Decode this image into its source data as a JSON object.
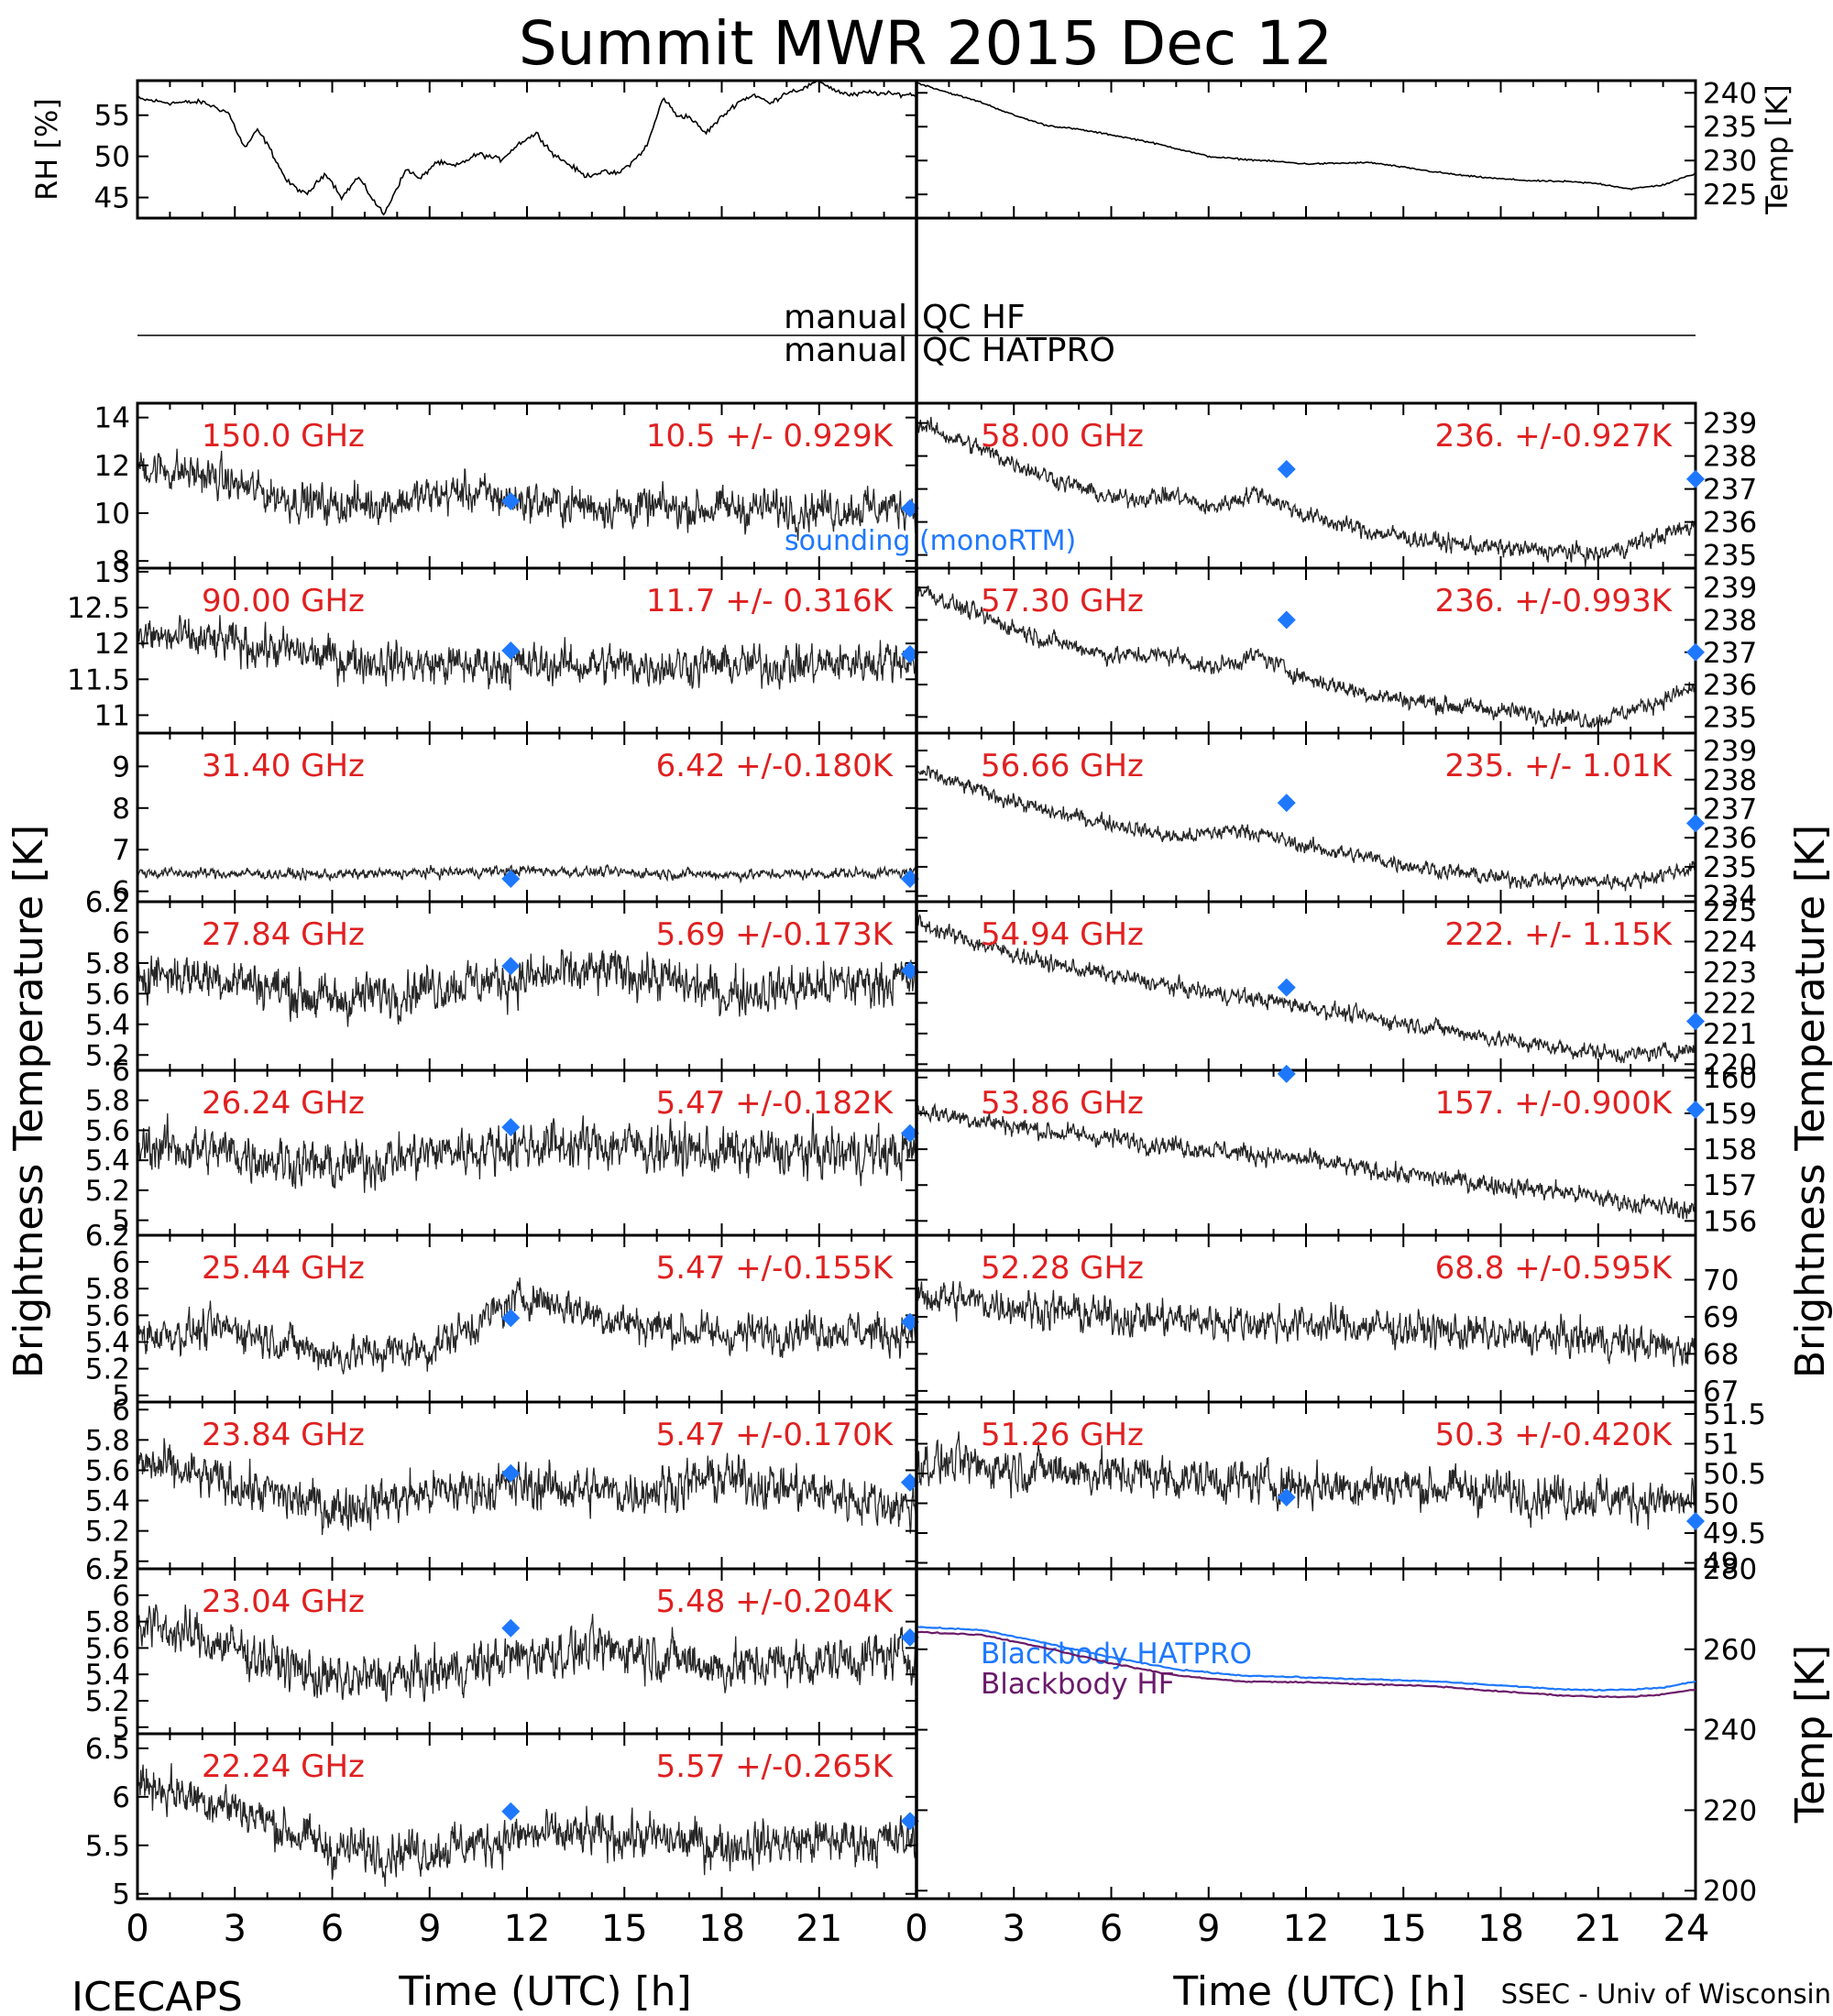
{
  "figure": {
    "title": "Summit MWR 2015 Dec 12",
    "footer_left": "ICECAPS",
    "footer_right": "SSEC - Univ of Wisconsin",
    "xlabel": "Time (UTC) [h]",
    "left_ylabel": "Brightness Temperature [K]",
    "right_ylabel": "Brightness Temperature [K]",
    "qc_left_label": "manual",
    "qc_hf_label": "QC HF",
    "qc_hatpro_label": "QC HATPRO",
    "sounding_label": "sounding (monoRTM)",
    "marker_color": "#1e78ff",
    "text_color": "#e02020"
  },
  "chart_data": [
    {
      "type": "line",
      "id": "rh",
      "ylabel": "RH [%]",
      "yticks": [
        45,
        50,
        55
      ],
      "ylim": [
        42.5,
        59.2
      ],
      "x": [
        0,
        1,
        2,
        2.8,
        3.3,
        3.7,
        4,
        4.6,
        5.2,
        5.8,
        6.3,
        6.8,
        7.3,
        7.6,
        7.9,
        8.3,
        8.7,
        9.2,
        9.8,
        10.5,
        11.2,
        11.8,
        12.3,
        12.8,
        13.3,
        13.8,
        14.3,
        14.8,
        15.3,
        15.7,
        16.2,
        16.6,
        17,
        17.5,
        18,
        18.5,
        19,
        19.5,
        20,
        20.5,
        21,
        21.5,
        22,
        22.5,
        23,
        23.8
      ],
      "values": [
        57,
        56.5,
        56.6,
        55.3,
        51,
        53.2,
        51.5,
        47,
        45.3,
        48,
        45,
        47.5,
        44.5,
        42.9,
        45.5,
        48.5,
        47.2,
        49.3,
        48.8,
        50.3,
        49.6,
        51.7,
        52.8,
        50.3,
        49,
        47.6,
        48.1,
        47.9,
        49.5,
        51.3,
        57.2,
        55,
        54.8,
        52.8,
        54.8,
        56.6,
        57.5,
        56.4,
        57.8,
        58.2,
        59.2,
        58,
        57.4,
        57.8,
        57.6,
        57.5
      ],
      "xlim": [
        0,
        24
      ]
    },
    {
      "type": "line",
      "id": "temp",
      "ylabel": "Temp [K]",
      "yticks": [
        225,
        230,
        235,
        240
      ],
      "ylim": [
        221.5,
        241.8
      ],
      "x": [
        0,
        1,
        2,
        3,
        4,
        5,
        6,
        7,
        8,
        9,
        10,
        11,
        12,
        13,
        14,
        15,
        16,
        17,
        18,
        19,
        20,
        21,
        22,
        23,
        24
      ],
      "values": [
        241.5,
        240,
        238.6,
        236.7,
        235.2,
        234.6,
        233.8,
        232.9,
        231.8,
        230.6,
        230.2,
        229.9,
        229.5,
        229.6,
        229.7,
        229.0,
        228.3,
        227.7,
        227.3,
        227.0,
        226.9,
        226.6,
        225.8,
        226.4,
        228.1
      ],
      "xlim": [
        0,
        24
      ]
    },
    {
      "type": "scatter",
      "side": "left",
      "label": "150.0 GHz",
      "stats": "10.5 +/- 0.929K",
      "yticks": [
        8,
        10,
        12,
        14
      ],
      "ylim": [
        7.7,
        14.6
      ],
      "xlim": [
        0,
        24
      ],
      "trend_x": [
        0,
        2,
        4,
        6,
        8,
        10,
        12,
        14,
        16,
        18,
        20,
        22,
        24
      ],
      "trend_y": [
        12,
        11.6,
        10.8,
        10.3,
        10.5,
        10.9,
        10.5,
        10.3,
        10.2,
        10.2,
        10.2,
        10.2,
        10.3
      ],
      "spread": 0.93,
      "sounding_x": [
        11.5,
        23.8
      ],
      "sounding_y": [
        10.5,
        10.2
      ],
      "sounding_label": "sounding (monoRTM)"
    },
    {
      "type": "scatter",
      "side": "left",
      "label": "90.00 GHz",
      "stats": "11.7 +/- 0.316K",
      "yticks": [
        11.0,
        11.5,
        12.0,
        12.5,
        13.0
      ],
      "ylim": [
        10.75,
        13.05
      ],
      "xlim": [
        0,
        24
      ],
      "trend_x": [
        0,
        3,
        6,
        9,
        12,
        15,
        18,
        21,
        24
      ],
      "trend_y": [
        12.1,
        12.0,
        11.8,
        11.7,
        11.7,
        11.7,
        11.7,
        11.7,
        11.8
      ],
      "spread": 0.32,
      "sounding_x": [
        11.5,
        23.8
      ],
      "sounding_y": [
        11.9,
        11.85
      ]
    },
    {
      "type": "scatter",
      "side": "left",
      "label": "31.40 GHz",
      "stats": "6.42 +/-0.180K",
      "yticks": [
        6,
        7,
        8,
        9
      ],
      "ylim": [
        5.75,
        9.8
      ],
      "xlim": [
        0,
        24
      ],
      "trend_x": [
        0,
        6,
        12,
        18,
        24
      ],
      "trend_y": [
        6.45,
        6.4,
        6.5,
        6.4,
        6.45
      ],
      "spread": 0.14,
      "sounding_x": [
        11.5,
        23.8
      ],
      "sounding_y": [
        6.3,
        6.3
      ]
    },
    {
      "type": "scatter",
      "side": "left",
      "label": "27.84 GHz",
      "stats": "5.69 +/-0.173K",
      "yticks": [
        5.2,
        5.4,
        5.6,
        5.8,
        6.0,
        6.2
      ],
      "ylim": [
        5.1,
        6.2
      ],
      "xlim": [
        0,
        24
      ],
      "trend_x": [
        0,
        3,
        6,
        9,
        12,
        15,
        18,
        21,
        24
      ],
      "trend_y": [
        5.75,
        5.7,
        5.55,
        5.65,
        5.7,
        5.75,
        5.6,
        5.65,
        5.7
      ],
      "spread": 0.17,
      "sounding_x": [
        11.5,
        23.8
      ],
      "sounding_y": [
        5.78,
        5.75
      ]
    },
    {
      "type": "scatter",
      "side": "left",
      "label": "26.24 GHz",
      "stats": "5.47 +/-0.182K",
      "yticks": [
        5.0,
        5.2,
        5.4,
        5.6,
        5.8,
        6.0
      ],
      "ylim": [
        4.9,
        6.0
      ],
      "xlim": [
        0,
        24
      ],
      "trend_x": [
        0,
        3,
        6,
        9,
        12,
        15,
        18,
        21,
        24
      ],
      "trend_y": [
        5.5,
        5.45,
        5.35,
        5.45,
        5.5,
        5.5,
        5.45,
        5.45,
        5.45
      ],
      "spread": 0.18,
      "sounding_x": [
        11.5,
        23.8
      ],
      "sounding_y": [
        5.62,
        5.58
      ]
    },
    {
      "type": "scatter",
      "side": "left",
      "label": "25.44 GHz",
      "stats": "5.47 +/-0.155K",
      "yticks": [
        5.0,
        5.2,
        5.4,
        5.6,
        5.8,
        6.0,
        6.2
      ],
      "ylim": [
        4.95,
        6.2
      ],
      "xlim": [
        0,
        24
      ],
      "trend_x": [
        0,
        3,
        6,
        9,
        12,
        15,
        18,
        21,
        24
      ],
      "trend_y": [
        5.45,
        5.5,
        5.3,
        5.35,
        5.75,
        5.55,
        5.45,
        5.5,
        5.45
      ],
      "spread": 0.16,
      "sounding_x": [
        11.5,
        23.8
      ],
      "sounding_y": [
        5.58,
        5.55
      ]
    },
    {
      "type": "scatter",
      "side": "left",
      "label": "23.84 GHz",
      "stats": "5.47 +/-0.170K",
      "yticks": [
        5.0,
        5.2,
        5.4,
        5.6,
        5.8,
        6.0
      ],
      "ylim": [
        4.95,
        6.05
      ],
      "xlim": [
        0,
        24
      ],
      "trend_x": [
        0,
        3,
        6,
        9,
        12,
        15,
        18,
        21,
        24
      ],
      "trend_y": [
        5.65,
        5.5,
        5.35,
        5.45,
        5.5,
        5.45,
        5.55,
        5.45,
        5.35
      ],
      "spread": 0.17,
      "sounding_x": [
        11.5,
        23.8
      ],
      "sounding_y": [
        5.58,
        5.52
      ]
    },
    {
      "type": "scatter",
      "side": "left",
      "label": "23.04 GHz",
      "stats": "5.48 +/-0.204K",
      "yticks": [
        5.0,
        5.2,
        5.4,
        5.6,
        5.8,
        6.0,
        6.2
      ],
      "ylim": [
        4.95,
        6.2
      ],
      "xlim": [
        0,
        24
      ],
      "trend_x": [
        0,
        3,
        6,
        9,
        12,
        15,
        18,
        21,
        24
      ],
      "trend_y": [
        5.8,
        5.6,
        5.35,
        5.4,
        5.55,
        5.6,
        5.45,
        5.5,
        5.55
      ],
      "spread": 0.2,
      "sounding_x": [
        11.5,
        23.8
      ],
      "sounding_y": [
        5.75,
        5.68
      ]
    },
    {
      "type": "scatter",
      "side": "left",
      "label": "22.24 GHz",
      "stats": "5.57 +/-0.265K",
      "yticks": [
        5.0,
        5.5,
        6.0,
        6.5
      ],
      "ylim": [
        4.95,
        6.65
      ],
      "xlim": [
        0,
        24
      ],
      "trend_x": [
        0,
        3,
        6,
        9,
        12,
        15,
        18,
        21,
        24
      ],
      "trend_y": [
        6.15,
        5.9,
        5.45,
        5.45,
        5.6,
        5.6,
        5.5,
        5.55,
        5.55
      ],
      "spread": 0.26,
      "sounding_x": [
        11.5,
        23.8
      ],
      "sounding_y": [
        5.85,
        5.75
      ]
    },
    {
      "type": "scatter",
      "side": "right",
      "label": "58.00 GHz",
      "stats": "236. +/-0.927K",
      "yticks": [
        235,
        236,
        237,
        238,
        239
      ],
      "ylim": [
        234.6,
        239.6
      ],
      "xlim": [
        0,
        24
      ],
      "trend_x": [
        0,
        2,
        4,
        6,
        8,
        9,
        10.5,
        12,
        14,
        16,
        18,
        20,
        21,
        22,
        24
      ],
      "trend_y": [
        239,
        238.2,
        237.4,
        236.7,
        236.8,
        236.4,
        236.9,
        236.2,
        235.7,
        235.4,
        235.2,
        235.1,
        235.0,
        235.3,
        235.9
      ],
      "spread": 0.3,
      "sounding_x": [
        11.4,
        24
      ],
      "sounding_y": [
        237.6,
        237.3
      ]
    },
    {
      "type": "scatter",
      "side": "right",
      "label": "57.30 GHz",
      "stats": "236. +/-0.993K",
      "yticks": [
        235,
        236,
        237,
        238,
        239
      ],
      "ylim": [
        234.5,
        239.6
      ],
      "xlim": [
        0,
        24
      ],
      "trend_x": [
        0,
        2,
        4,
        6,
        8,
        9,
        10.5,
        12,
        14,
        16,
        18,
        20,
        21,
        22,
        24
      ],
      "trend_y": [
        239,
        238.1,
        237.4,
        236.9,
        236.9,
        236.5,
        236.9,
        236.2,
        235.7,
        235.4,
        235.2,
        235.0,
        234.9,
        235.2,
        235.9
      ],
      "spread": 0.3,
      "sounding_x": [
        11.4,
        24
      ],
      "sounding_y": [
        238.0,
        237.0
      ]
    },
    {
      "type": "scatter",
      "side": "right",
      "label": "56.66 GHz",
      "stats": "235. +/- 1.01K",
      "yticks": [
        234,
        235,
        236,
        237,
        238,
        239
      ],
      "ylim": [
        233.8,
        239.6
      ],
      "xlim": [
        0,
        24
      ],
      "trend_x": [
        0,
        2,
        4,
        6,
        8,
        10,
        12,
        14,
        16,
        18,
        20,
        22,
        24
      ],
      "trend_y": [
        238.3,
        237.6,
        236.9,
        236.5,
        236.0,
        236.3,
        235.7,
        235.3,
        234.9,
        234.6,
        234.5,
        234.5,
        235.0
      ],
      "spread": 0.3,
      "sounding_x": [
        11.4,
        24
      ],
      "sounding_y": [
        237.2,
        236.5
      ]
    },
    {
      "type": "scatter",
      "side": "right",
      "label": "54.94 GHz",
      "stats": "222. +/- 1.15K",
      "yticks": [
        220,
        221,
        222,
        223,
        224,
        225
      ],
      "ylim": [
        219.8,
        225.3
      ],
      "xlim": [
        0,
        24
      ],
      "trend_x": [
        0,
        2,
        4,
        6,
        8,
        10,
        12,
        14,
        16,
        18,
        20,
        22,
        24
      ],
      "trend_y": [
        224.6,
        223.9,
        223.3,
        222.9,
        222.5,
        222.2,
        221.9,
        221.5,
        221.2,
        220.8,
        220.5,
        220.3,
        220.5
      ],
      "spread": 0.3,
      "sounding_x": [
        11.4,
        24
      ],
      "sounding_y": [
        222.5,
        221.4
      ]
    },
    {
      "type": "scatter",
      "side": "right",
      "label": "53.86 GHz",
      "stats": "157. +/-0.900K",
      "yticks": [
        156,
        157,
        158,
        159,
        160
      ],
      "ylim": [
        155.6,
        160.2
      ],
      "xlim": [
        0,
        24
      ],
      "trend_x": [
        0,
        2,
        4,
        6,
        8,
        10,
        12,
        14,
        16,
        18,
        20,
        22,
        24
      ],
      "trend_y": [
        159.1,
        158.8,
        158.5,
        158.3,
        158.1,
        157.9,
        157.7,
        157.4,
        157.2,
        157.0,
        156.8,
        156.5,
        156.3
      ],
      "spread": 0.3,
      "sounding_x": [
        11.4,
        24
      ],
      "sounding_y": [
        160.1,
        159.1
      ]
    },
    {
      "type": "scatter",
      "side": "right",
      "label": "52.28 GHz",
      "stats": "68.8 +/-0.595K",
      "yticks": [
        67,
        68,
        69,
        70
      ],
      "ylim": [
        66.7,
        71.2
      ],
      "xlim": [
        0,
        24
      ],
      "trend_x": [
        0,
        3,
        6,
        9,
        12,
        15,
        18,
        21,
        24
      ],
      "trend_y": [
        69.6,
        69.3,
        69.0,
        68.9,
        68.8,
        68.7,
        68.5,
        68.4,
        68.1
      ],
      "spread": 0.55,
      "sounding_x": [],
      "sounding_y": []
    },
    {
      "type": "scatter",
      "side": "right",
      "label": "51.26 GHz",
      "stats": "50.3 +/-0.420K",
      "yticks": [
        49.0,
        49.5,
        50.0,
        50.5,
        51.0,
        51.5
      ],
      "ylim": [
        48.9,
        51.7
      ],
      "xlim": [
        0,
        24
      ],
      "trend_x": [
        0,
        3,
        6,
        9,
        12,
        15,
        18,
        21,
        24
      ],
      "trend_y": [
        50.7,
        50.6,
        50.5,
        50.4,
        50.3,
        50.3,
        50.2,
        50.1,
        50.0
      ],
      "spread": 0.4,
      "sounding_x": [
        11.4,
        24
      ],
      "sounding_y": [
        50.1,
        49.7
      ]
    },
    {
      "type": "line",
      "id": "blackbody",
      "ylabel": "Temp [K]",
      "yticks": [
        200,
        220,
        240,
        260,
        280
      ],
      "ylim": [
        198,
        280
      ],
      "xlim": [
        0,
        24
      ],
      "series": [
        {
          "name": "Blackbody HATPRO",
          "color": "#1e78ff",
          "x": [
            0,
            2,
            4,
            6,
            8,
            10,
            12,
            14,
            16,
            18,
            20,
            21,
            22,
            23,
            24
          ],
          "values": [
            265.5,
            264.8,
            261.5,
            258,
            255,
            253.5,
            253,
            252.5,
            252,
            251,
            250,
            249.8,
            250,
            250.5,
            252
          ]
        },
        {
          "name": "Blackbody HF",
          "color": "#6a1b6a",
          "x": [
            0,
            2,
            4,
            6,
            8,
            10,
            12,
            14,
            16,
            18,
            20,
            21,
            22,
            23,
            24
          ],
          "values": [
            264.3,
            263.6,
            260.3,
            256.5,
            253.5,
            252,
            251.8,
            251.3,
            250.8,
            249.5,
            248.5,
            248.2,
            248.2,
            248.8,
            250
          ]
        }
      ]
    }
  ],
  "xticks_left": [
    0,
    3,
    6,
    9,
    12,
    15,
    18,
    21
  ],
  "xticks_right": [
    0,
    3,
    6,
    9,
    12,
    15,
    18,
    21,
    24
  ]
}
